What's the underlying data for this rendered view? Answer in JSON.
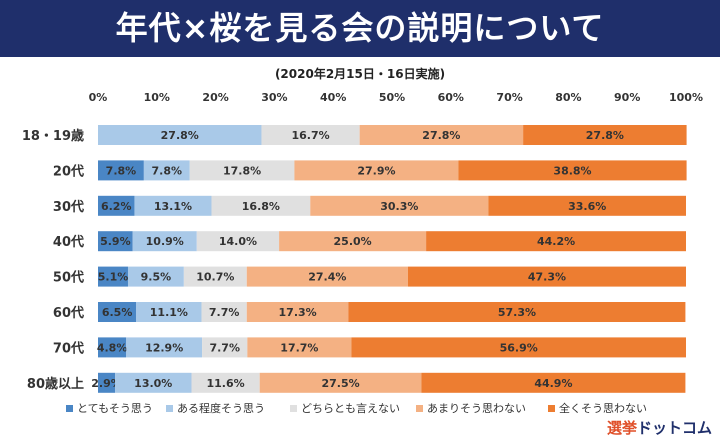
{
  "header": {
    "title": "年代×桜を見る会の説明について"
  },
  "logo": {
    "text_a": "選挙",
    "text_b": "ドットコム"
  },
  "colors": {
    "very_yes": "#4a86c5",
    "somewhat_yes": "#a9c9e8",
    "neither": "#e0e0e0",
    "somewhat_no": "#f4b183",
    "not_at_all": "#ed7d31"
  },
  "chart_data": {
    "type": "bar",
    "orientation": "horizontal",
    "stacked": "percent",
    "title": "",
    "subtitle": "(2020年2月15日・16日実施)",
    "xlabel": "",
    "ylabel": "",
    "xlim": [
      0,
      100
    ],
    "x_ticks": [
      "0%",
      "10%",
      "20%",
      "30%",
      "40%",
      "50%",
      "60%",
      "70%",
      "80%",
      "90%",
      "100%"
    ],
    "categories": [
      "18・19歳",
      "20代",
      "30代",
      "40代",
      "50代",
      "60代",
      "70代",
      "80歳以上"
    ],
    "series": [
      {
        "name": "とてもそう思う",
        "values": [
          0,
          7.8,
          6.2,
          5.9,
          5.1,
          6.5,
          4.8,
          2.9
        ]
      },
      {
        "name": "ある程度そう思う",
        "values": [
          27.8,
          7.8,
          13.1,
          10.9,
          9.5,
          11.1,
          12.9,
          13.0
        ]
      },
      {
        "name": "どちらとも言えない",
        "values": [
          16.7,
          17.8,
          16.8,
          14.0,
          10.7,
          7.7,
          7.7,
          11.6
        ]
      },
      {
        "name": "あまりそう思わない",
        "values": [
          27.8,
          27.9,
          30.3,
          25.0,
          27.4,
          17.3,
          17.7,
          27.5
        ]
      },
      {
        "name": "全くそう思わない",
        "values": [
          27.8,
          38.8,
          33.6,
          44.2,
          47.3,
          57.3,
          56.9,
          44.9
        ]
      }
    ],
    "legend": "bottom",
    "grid": false
  }
}
